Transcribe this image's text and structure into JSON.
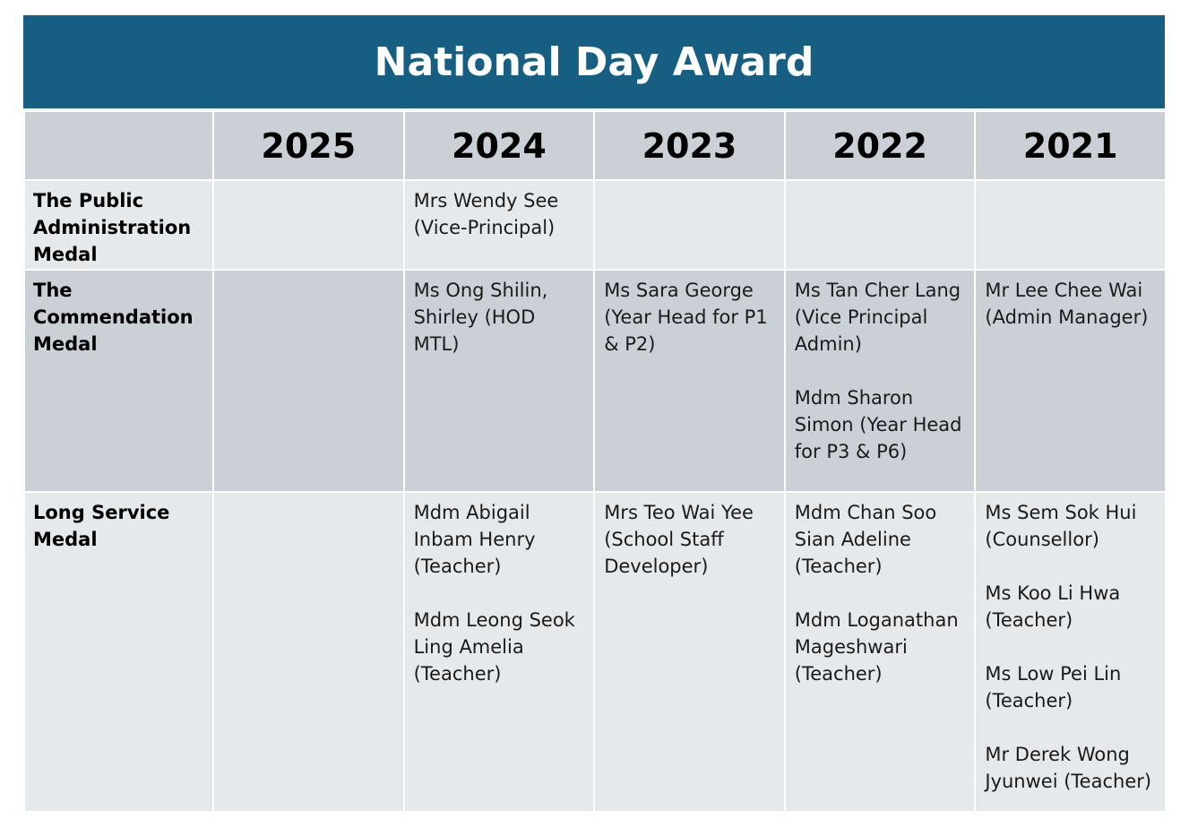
{
  "title": "National Day Award",
  "years": [
    "2025",
    "2024",
    "2023",
    "2022",
    "2021"
  ],
  "rows": [
    {
      "category": "The Public Administration Medal",
      "cells": [
        [],
        [
          {
            "name": "Mrs Wendy See",
            "role": "(Vice-Principal)"
          }
        ],
        [],
        [],
        []
      ]
    },
    {
      "category": "The Commendation Medal",
      "cells": [
        [],
        [
          {
            "name": "Ms Ong Shilin, Shirley",
            "role": "(HOD MTL)"
          }
        ],
        [
          {
            "name": "Ms Sara George",
            "role": "(Year Head for P1 & P2)"
          }
        ],
        [
          {
            "name": "Ms Tan Cher Lang",
            "role": "(Vice Principal Admin)"
          },
          {
            "name": "Mdm Sharon Simon",
            "role": "(Year Head for P3 & P6)"
          }
        ],
        [
          {
            "name": "Mr Lee Chee Wai",
            "role": "(Admin Manager)"
          }
        ]
      ]
    },
    {
      "category": "Long Service Medal",
      "cells": [
        [],
        [
          {
            "name": "Mdm Abigail Inbam Henry",
            "role": "(Teacher)"
          },
          {
            "name": "Mdm Leong Seok Ling Amelia",
            "role": "(Teacher)"
          }
        ],
        [
          {
            "name": "Mrs Teo Wai Yee",
            "role": "(School Staff Developer)"
          }
        ],
        [
          {
            "name": "Mdm Chan Soo Sian Adeline",
            "role": "(Teacher)"
          },
          {
            "name": "Mdm Loganathan Mageshwari",
            "role": "(Teacher)"
          }
        ],
        [
          {
            "name": "Ms Sem Sok Hui",
            "role": "(Counsellor)"
          },
          {
            "name": "Ms Koo Li Hwa",
            "role": "(Teacher)"
          },
          {
            "name": "Ms Low Pei Lin",
            "role": "(Teacher)"
          },
          {
            "name": "Mr Derek Wong Jyunwei",
            "role": "(Teacher)"
          }
        ]
      ]
    }
  ],
  "colors": {
    "title_background": "#175f82",
    "header_background": "#cbd0d6",
    "row_light": "#e6e9ec",
    "row_dark": "#cbd0d6"
  }
}
